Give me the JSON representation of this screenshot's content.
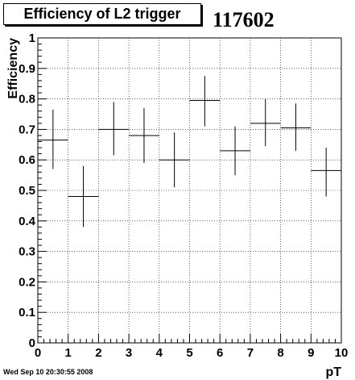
{
  "header": {
    "title": "Efficiency of L2 trigger",
    "run_number": "117602"
  },
  "footer": {
    "timestamp": "Wed Sep 10 20:30:55 2008"
  },
  "chart_data": {
    "type": "scatter",
    "title": "Efficiency of L2 trigger",
    "xlabel": "pT",
    "ylabel": "Efficiency",
    "xlim": [
      0,
      10
    ],
    "ylim": [
      0,
      1
    ],
    "grid": true,
    "x_ticks": [
      "0",
      "1",
      "2",
      "3",
      "4",
      "5",
      "6",
      "7",
      "8",
      "9",
      "10"
    ],
    "y_ticks": [
      "0",
      "0.1",
      "0.2",
      "0.3",
      "0.4",
      "0.5",
      "0.6",
      "0.7",
      "0.8",
      "0.9",
      "1"
    ],
    "points": [
      {
        "x": 0.5,
        "y": 0.665,
        "xerr": 0.5,
        "yerr": [
          0.095,
          0.1
        ]
      },
      {
        "x": 1.5,
        "y": 0.48,
        "xerr": 0.5,
        "yerr": [
          0.1,
          0.1
        ]
      },
      {
        "x": 2.5,
        "y": 0.7,
        "xerr": 0.5,
        "yerr": [
          0.085,
          0.09
        ]
      },
      {
        "x": 3.5,
        "y": 0.68,
        "xerr": 0.5,
        "yerr": [
          0.09,
          0.09
        ]
      },
      {
        "x": 4.5,
        "y": 0.6,
        "xerr": 0.5,
        "yerr": [
          0.09,
          0.09
        ]
      },
      {
        "x": 5.5,
        "y": 0.795,
        "xerr": 0.5,
        "yerr": [
          0.085,
          0.08
        ]
      },
      {
        "x": 6.5,
        "y": 0.63,
        "xerr": 0.5,
        "yerr": [
          0.08,
          0.08
        ]
      },
      {
        "x": 7.5,
        "y": 0.72,
        "xerr": 0.5,
        "yerr": [
          0.075,
          0.08
        ]
      },
      {
        "x": 8.5,
        "y": 0.705,
        "xerr": 0.5,
        "yerr": [
          0.075,
          0.08
        ]
      },
      {
        "x": 9.5,
        "y": 0.565,
        "xerr": 0.5,
        "yerr": [
          0.085,
          0.075
        ]
      }
    ]
  }
}
